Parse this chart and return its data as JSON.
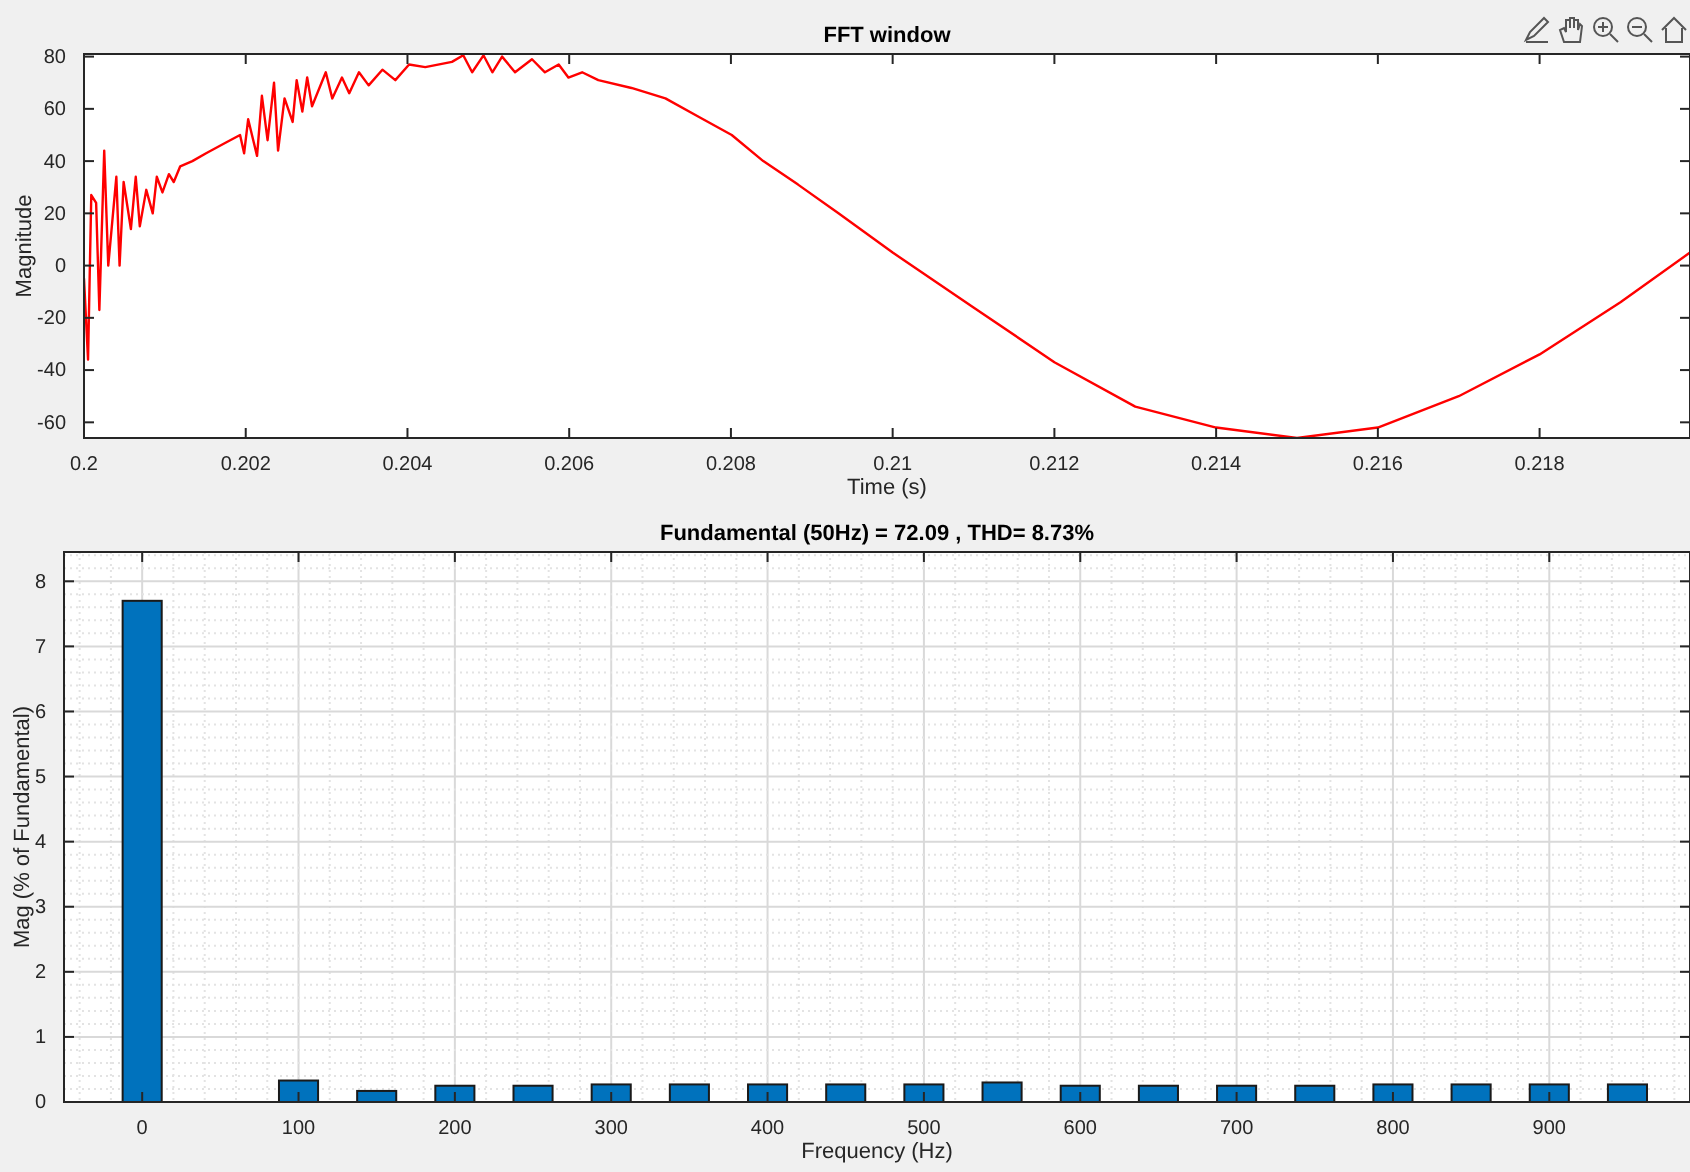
{
  "chart_data": [
    {
      "type": "line",
      "title": "FFT window",
      "xlabel": "Time (s)",
      "ylabel": "Magnitude",
      "x": [
        0.2,
        0.20005,
        0.20009,
        0.20015,
        0.20019,
        0.20025,
        0.2003,
        0.2004,
        0.20044,
        0.20049,
        0.20058,
        0.20064,
        0.20069,
        0.20077,
        0.20085,
        0.2009,
        0.20097,
        0.20105,
        0.20111,
        0.20119,
        0.20134,
        0.20151,
        0.20175,
        0.20193,
        0.20198,
        0.20203,
        0.20214,
        0.2022,
        0.20227,
        0.20235,
        0.2024,
        0.20248,
        0.20258,
        0.20263,
        0.2027,
        0.20276,
        0.20282,
        0.20299,
        0.20307,
        0.20319,
        0.20328,
        0.2034,
        0.20352,
        0.20369,
        0.20385,
        0.20402,
        0.20422,
        0.20455,
        0.20469,
        0.2048,
        0.20494,
        0.20505,
        0.20517,
        0.20533,
        0.20554,
        0.2057,
        0.20587,
        0.20599,
        0.20616,
        0.20636,
        0.20677,
        0.20719,
        0.2076,
        0.20801,
        0.2084,
        0.20883,
        0.20933,
        0.21,
        0.211,
        0.212,
        0.213,
        0.214,
        0.215,
        0.216,
        0.217,
        0.218,
        0.219,
        0.21986
      ],
      "series": [
        {
          "color": "#ff0000",
          "values": [
            -5,
            -36,
            27,
            24,
            -17,
            44,
            0,
            34,
            0,
            32,
            14,
            34,
            15,
            29,
            20,
            34,
            28,
            35,
            32,
            38,
            40,
            43,
            47,
            50,
            43,
            56,
            42,
            65,
            48,
            70,
            44,
            64,
            55,
            71,
            59,
            72,
            61,
            74,
            64,
            72,
            66,
            74,
            69,
            75,
            71,
            77,
            76,
            78,
            80.5,
            74,
            80.5,
            74,
            80,
            74,
            79,
            74,
            77,
            72,
            74,
            71,
            68,
            64,
            57,
            50,
            40,
            31,
            20,
            5,
            -16,
            -37,
            -54,
            -62,
            -66,
            -62,
            -50,
            -34,
            -14,
            5
          ]
        }
      ],
      "xlim": [
        0.2,
        0.21986
      ],
      "ylim": [
        -66,
        81
      ],
      "xticks": [
        0.2,
        0.202,
        0.204,
        0.206,
        0.208,
        0.21,
        0.212,
        0.214,
        0.216,
        0.218
      ],
      "yticks": [
        -60,
        -40,
        -20,
        0,
        20,
        40,
        60,
        80
      ]
    },
    {
      "type": "bar",
      "title": "Fundamental (50Hz) = 72.09 , THD= 8.73%",
      "xlabel": "Frequency (Hz)",
      "ylabel": "Mag (% of Fundamental)",
      "x": [
        0,
        50,
        100,
        150,
        200,
        250,
        300,
        350,
        400,
        450,
        500,
        550,
        600,
        650,
        700,
        750,
        800,
        850,
        900,
        950
      ],
      "values": [
        7.7,
        null,
        0.33,
        0.17,
        0.25,
        0.25,
        0.27,
        0.27,
        0.27,
        0.27,
        0.27,
        0.3,
        0.25,
        0.25,
        0.25,
        0.25,
        0.27,
        0.27,
        0.27,
        0.27
      ],
      "color": "#0072bd",
      "xlim": [
        -50,
        990
      ],
      "ylim": [
        0,
        8.45
      ],
      "xticks": [
        0,
        100,
        200,
        300,
        400,
        500,
        600,
        700,
        800,
        900
      ],
      "yticks": [
        0,
        1,
        2,
        3,
        4,
        5,
        6,
        7,
        8
      ],
      "grid": true
    }
  ]
}
